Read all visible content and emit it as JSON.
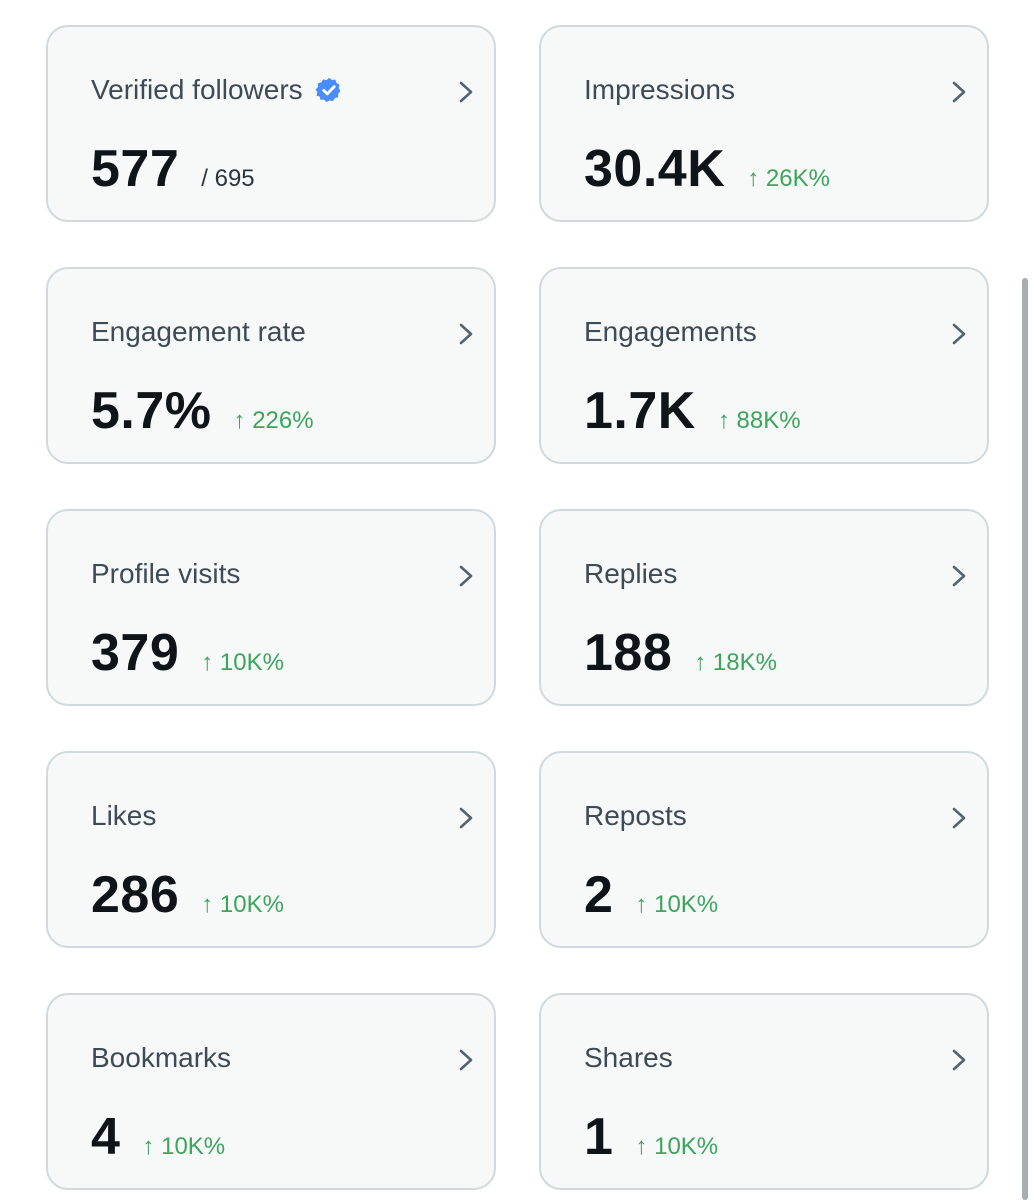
{
  "cards": [
    {
      "title": "Verified followers",
      "value": "577",
      "total": "/ 695"
    },
    {
      "title": "Impressions",
      "value": "30.4K",
      "change": "↑ 26K%"
    },
    {
      "title": "Engagement rate",
      "value": "5.7%",
      "change": "↑ 226%"
    },
    {
      "title": "Engagements",
      "value": "1.7K",
      "change": "↑ 88K%"
    },
    {
      "title": "Profile visits",
      "value": "379",
      "change": "↑ 10K%"
    },
    {
      "title": "Replies",
      "value": "188",
      "change": "↑ 18K%"
    },
    {
      "title": "Likes",
      "value": "286",
      "change": "↑ 10K%"
    },
    {
      "title": "Reposts",
      "value": "2",
      "change": "↑ 10K%"
    },
    {
      "title": "Bookmarks",
      "value": "4",
      "change": "↑ 10K%"
    },
    {
      "title": "Shares",
      "value": "1",
      "change": "↑ 10K%"
    }
  ],
  "icons": {
    "verified": "verified-badge-icon",
    "chevron": "chevron-right-icon"
  },
  "colors": {
    "card_background": "#f7f9f9",
    "card_border": "#cfd9de",
    "positive_change": "#3ba55c",
    "verified_badge": "#4b8df8"
  }
}
